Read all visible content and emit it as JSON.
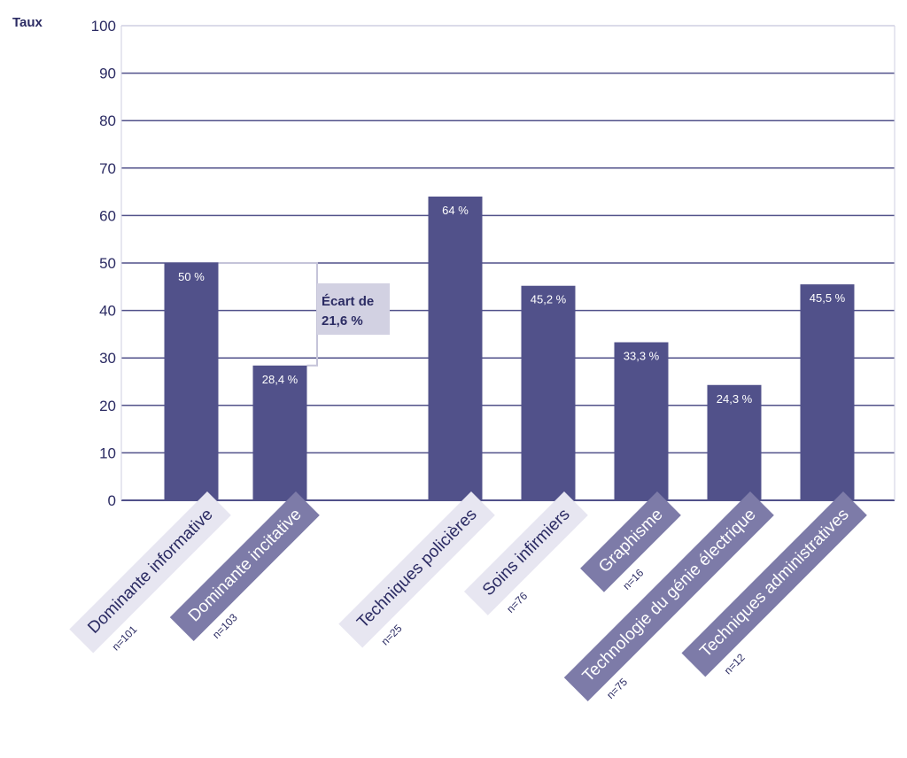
{
  "chart_data": {
    "type": "bar",
    "ylabel": "Taux",
    "ylim": [
      0,
      100
    ],
    "yticks": [
      "0",
      "10",
      "20",
      "30",
      "40",
      "50",
      "60",
      "70",
      "80",
      "90",
      "100"
    ],
    "grid": true,
    "categories": [
      {
        "label": "Dominante informative",
        "n": "n=101",
        "value": 50,
        "value_label": "50 %",
        "group": "light"
      },
      {
        "label": "Dominante incitative",
        "n": "n=103",
        "value": 28.4,
        "value_label": "28,4 %",
        "group": "dark"
      },
      {
        "label": "Techniques policières",
        "n": "n=25",
        "value": 64,
        "value_label": "64 %",
        "group": "light"
      },
      {
        "label": "Soins infirmiers",
        "n": "n=76",
        "value": 45.2,
        "value_label": "45,2 %",
        "group": "light"
      },
      {
        "label": "Graphisme",
        "n": "n=16",
        "value": 33.3,
        "value_label": "33,3 %",
        "group": "dark"
      },
      {
        "label": "Technologie du génie électrique",
        "n": "n=75",
        "value": 24.3,
        "value_label": "24,3 %",
        "group": "dark"
      },
      {
        "label": "Techniques administratives",
        "n": "n=12",
        "value": 45.5,
        "value_label": "45,5 %",
        "group": "dark"
      }
    ],
    "annotation": {
      "line1": "Écart de",
      "line2": "21,6 %"
    },
    "colors": {
      "bar": "#51518a",
      "grid": "#51518a",
      "label_light_bg": "#e7e6f1",
      "label_light_text": "#2b2b63",
      "label_dark_bg": "#7d7ba8",
      "label_dark_text": "#ffffff",
      "annotation_bg": "#d2d1e2",
      "annotation_line": "#c5c4d9"
    }
  }
}
